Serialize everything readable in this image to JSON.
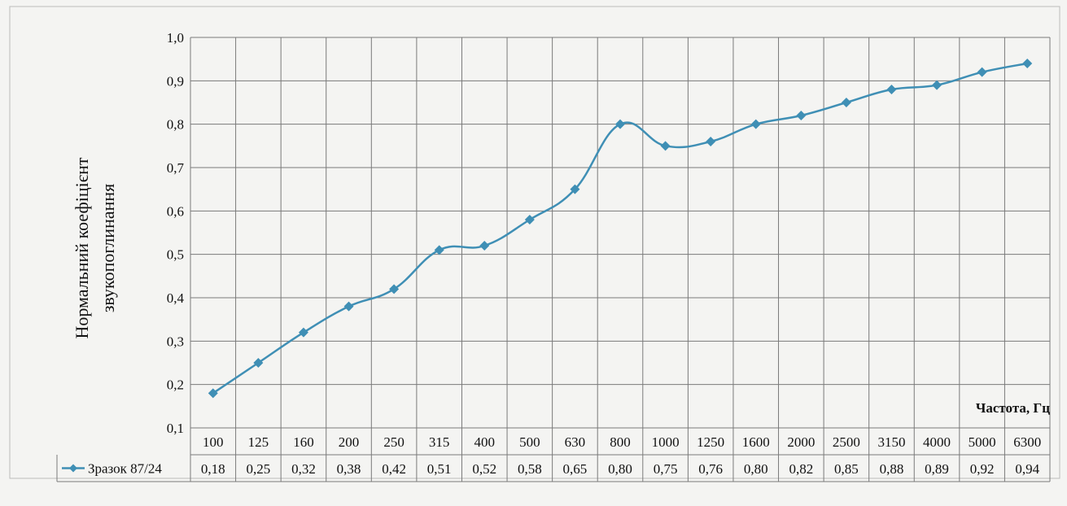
{
  "chart_data": {
    "type": "line",
    "title": "",
    "ylabel_lines": [
      "Нормальний коефіцієнт",
      "звукопоглинання"
    ],
    "xlabel": "Частота, Гц",
    "ylim": [
      0.1,
      1.0
    ],
    "yticks": [
      "0,1",
      "0,2",
      "0,3",
      "0,4",
      "0,5",
      "0,6",
      "0,7",
      "0,8",
      "0,9",
      "1,0"
    ],
    "grid": true,
    "legend_placement": "data-table-left",
    "categories": [
      "100",
      "125",
      "160",
      "200",
      "250",
      "315",
      "400",
      "500",
      "630",
      "800",
      "1000",
      "1250",
      "1600",
      "2000",
      "2500",
      "3150",
      "4000",
      "5000",
      "6300"
    ],
    "series": [
      {
        "name": "Зразок 87/24",
        "color": "#3f8fb5",
        "marker": "diamond",
        "values": [
          0.18,
          0.25,
          0.32,
          0.38,
          0.42,
          0.51,
          0.52,
          0.58,
          0.65,
          0.8,
          0.75,
          0.76,
          0.8,
          0.82,
          0.85,
          0.88,
          0.89,
          0.92,
          0.94
        ],
        "value_labels": [
          "0,18",
          "0,25",
          "0,32",
          "0,38",
          "0,42",
          "0,51",
          "0,52",
          "0,58",
          "0,65",
          "0,80",
          "0,75",
          "0,76",
          "0,80",
          "0,82",
          "0,85",
          "0,88",
          "0,89",
          "0,92",
          "0,94"
        ]
      }
    ]
  }
}
